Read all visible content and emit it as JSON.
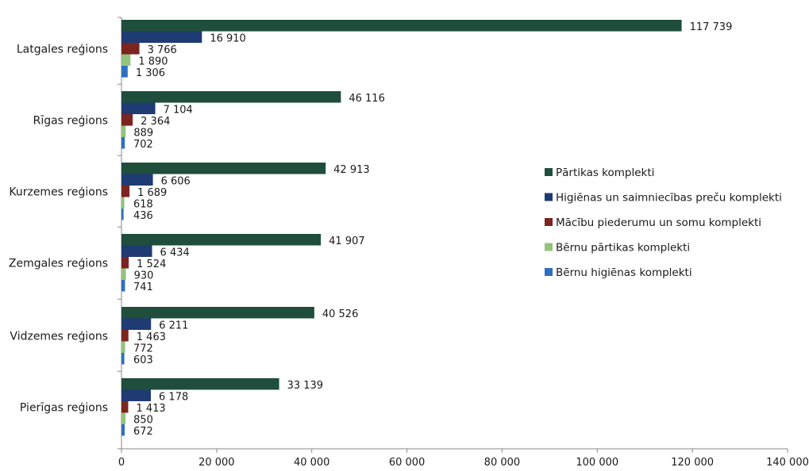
{
  "chart_data": {
    "type": "bar",
    "orientation": "horizontal",
    "categories": [
      "Latgales reģions",
      "Rīgas reģions",
      "Kurzemes reģions",
      "Zemgales reģions",
      "Vidzemes reģions",
      "Pierīgas reģions"
    ],
    "series": [
      {
        "name": "Pārtikas komplekti",
        "color": "#1f4e3d",
        "values": [
          117739,
          46116,
          42913,
          41907,
          40526,
          33139
        ],
        "labels": [
          "117 739",
          "46 116",
          "42 913",
          "41 907",
          "40 526",
          "33 139"
        ]
      },
      {
        "name": "Higiēnas un saimniecības preču komplekti",
        "color": "#1f3b73",
        "values": [
          16910,
          7104,
          6606,
          6434,
          6211,
          6178
        ],
        "labels": [
          "16 910",
          "7 104",
          "6 606",
          "6 434",
          "6 211",
          "6 178"
        ]
      },
      {
        "name": "Mācību piederumu un somu komplekti",
        "color": "#7b2420",
        "values": [
          3766,
          2364,
          1689,
          1524,
          1463,
          1413
        ],
        "labels": [
          "3 766",
          "2 364",
          "1 689",
          "1 524",
          "1 463",
          "1 413"
        ]
      },
      {
        "name": "Bērnu pārtikas komplekti",
        "color": "#93c47d",
        "values": [
          1890,
          889,
          618,
          930,
          772,
          850
        ],
        "labels": [
          "1 890",
          "889",
          "618",
          "930",
          "772",
          "850"
        ]
      },
      {
        "name": "Bērnu higiēnas komplekti",
        "color": "#2f6fc0",
        "values": [
          1306,
          702,
          436,
          741,
          603,
          672
        ],
        "labels": [
          "1 306",
          "702",
          "436",
          "741",
          "603",
          "672"
        ]
      }
    ],
    "xlim": [
      0,
      140000
    ],
    "xticks": [
      0,
      20000,
      40000,
      60000,
      80000,
      100000,
      120000,
      140000
    ],
    "xtick_labels": [
      "0",
      "20 000",
      "40 000",
      "60 000",
      "80 000",
      "100 000",
      "120 000",
      "140 000"
    ],
    "title": "",
    "xlabel": "",
    "ylabel": "",
    "grid": false,
    "legend_position": "right"
  }
}
